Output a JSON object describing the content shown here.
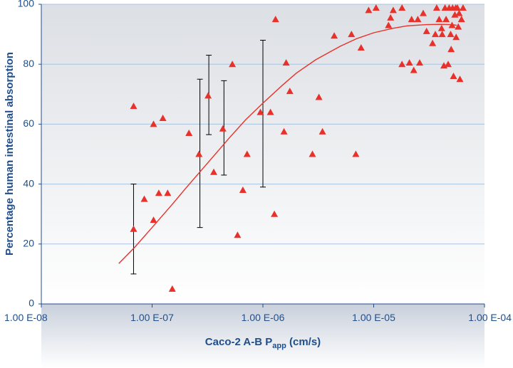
{
  "chart_data": {
    "type": "scatter",
    "title": "",
    "xlabel": "Caco-2 A-B P",
    "xlabel_sub": "app",
    "xlabel_unit": " (cm/s)",
    "ylabel": "Percentage human intestinal absorption",
    "x_scale": "log",
    "xlim": [
      1e-08,
      0.0001
    ],
    "ylim": [
      0,
      100
    ],
    "x_ticks": [
      {
        "value": 1e-08,
        "label": "1.00 E-08"
      },
      {
        "value": 1e-07,
        "label": "1.00 E-07"
      },
      {
        "value": 1e-06,
        "label": "1.00 E-06"
      },
      {
        "value": 1e-05,
        "label": "1.00 E-05"
      },
      {
        "value": 0.0001,
        "label": "1.00 E-04"
      }
    ],
    "y_ticks": [
      {
        "value": 0,
        "label": "0"
      },
      {
        "value": 20,
        "label": "20"
      },
      {
        "value": 40,
        "label": "40"
      },
      {
        "value": 60,
        "label": "60"
      },
      {
        "value": 80,
        "label": "80"
      },
      {
        "value": 100,
        "label": "100"
      }
    ],
    "grid": "horizontal",
    "legend": "none",
    "colors": {
      "points": "#e8312a",
      "fit": "#e8312a",
      "text": "#1f4f8b",
      "error_bars": "#000000",
      "grid": "#a9c3df"
    },
    "points": [
      {
        "x": 6.8e-08,
        "y": 66
      },
      {
        "x": 6.8e-08,
        "y": 25
      },
      {
        "x": 8.5e-08,
        "y": 35
      },
      {
        "x": 1.03e-07,
        "y": 28
      },
      {
        "x": 1.03e-07,
        "y": 60
      },
      {
        "x": 1.15e-07,
        "y": 37
      },
      {
        "x": 1.25e-07,
        "y": 62
      },
      {
        "x": 1.38e-07,
        "y": 37
      },
      {
        "x": 1.52e-07,
        "y": 5
      },
      {
        "x": 2.15e-07,
        "y": 57
      },
      {
        "x": 2.65e-07,
        "y": 50
      },
      {
        "x": 3.2e-07,
        "y": 69.5
      },
      {
        "x": 3.6e-07,
        "y": 44
      },
      {
        "x": 4.35e-07,
        "y": 58.5
      },
      {
        "x": 5.3e-07,
        "y": 80
      },
      {
        "x": 5.9e-07,
        "y": 23
      },
      {
        "x": 6.6e-07,
        "y": 38
      },
      {
        "x": 7.2e-07,
        "y": 50
      },
      {
        "x": 9.5e-07,
        "y": 64
      },
      {
        "x": 1.17e-06,
        "y": 64
      },
      {
        "x": 1.27e-06,
        "y": 30
      },
      {
        "x": 1.3e-06,
        "y": 95
      },
      {
        "x": 1.55e-06,
        "y": 57.5
      },
      {
        "x": 1.62e-06,
        "y": 80.5
      },
      {
        "x": 1.75e-06,
        "y": 71
      },
      {
        "x": 2.8e-06,
        "y": 50
      },
      {
        "x": 3.2e-06,
        "y": 69
      },
      {
        "x": 3.45e-06,
        "y": 57.5
      },
      {
        "x": 4.4e-06,
        "y": 89.5
      },
      {
        "x": 6.3e-06,
        "y": 90
      },
      {
        "x": 6.9e-06,
        "y": 50
      },
      {
        "x": 7.7e-06,
        "y": 85.5
      },
      {
        "x": 9e-06,
        "y": 98
      },
      {
        "x": 1.05e-05,
        "y": 100
      },
      {
        "x": 1.36e-05,
        "y": 93
      },
      {
        "x": 1.42e-05,
        "y": 95.5
      },
      {
        "x": 1.5e-05,
        "y": 98
      },
      {
        "x": 1.8e-05,
        "y": 100
      },
      {
        "x": 1.8e-05,
        "y": 80
      },
      {
        "x": 2.1e-05,
        "y": 80.5
      },
      {
        "x": 2.2e-05,
        "y": 95
      },
      {
        "x": 2.3e-05,
        "y": 78
      },
      {
        "x": 2.5e-05,
        "y": 95
      },
      {
        "x": 2.6e-05,
        "y": 80.5
      },
      {
        "x": 2.8e-05,
        "y": 97
      },
      {
        "x": 3e-05,
        "y": 91
      },
      {
        "x": 3.4e-05,
        "y": 87
      },
      {
        "x": 3.6e-05,
        "y": 90
      },
      {
        "x": 3.7e-05,
        "y": 100
      },
      {
        "x": 3.9e-05,
        "y": 95
      },
      {
        "x": 4.1e-05,
        "y": 92
      },
      {
        "x": 4.15e-05,
        "y": 90
      },
      {
        "x": 4.3e-05,
        "y": 79.5
      },
      {
        "x": 4.4e-05,
        "y": 100
      },
      {
        "x": 4.5e-05,
        "y": 95
      },
      {
        "x": 4.7e-05,
        "y": 80
      },
      {
        "x": 4.8e-05,
        "y": 100
      },
      {
        "x": 4.95e-05,
        "y": 90
      },
      {
        "x": 5e-05,
        "y": 85
      },
      {
        "x": 5.1e-05,
        "y": 93
      },
      {
        "x": 5.15e-05,
        "y": 100
      },
      {
        "x": 5.25e-05,
        "y": 76
      },
      {
        "x": 5.4e-05,
        "y": 96.5
      },
      {
        "x": 5.5e-05,
        "y": 99
      },
      {
        "x": 5.55e-05,
        "y": 89
      },
      {
        "x": 5.7e-05,
        "y": 100
      },
      {
        "x": 5.8e-05,
        "y": 92.5
      },
      {
        "x": 5.9e-05,
        "y": 97
      },
      {
        "x": 6e-05,
        "y": 75
      },
      {
        "x": 6.2e-05,
        "y": 95
      },
      {
        "x": 6.4e-05,
        "y": 100
      }
    ],
    "error_bars": [
      {
        "x": 6.8e-08,
        "low": 10,
        "high": 40
      },
      {
        "x": 2.7e-07,
        "low": 25.5,
        "high": 75
      },
      {
        "x": 3.25e-07,
        "low": 56.5,
        "high": 83
      },
      {
        "x": 4.45e-07,
        "low": 43,
        "high": 74.5
      },
      {
        "x": 1e-06,
        "low": 39,
        "high": 88
      }
    ],
    "fit_curve": [
      {
        "x": 5e-08,
        "y": 13.5
      },
      {
        "x": 7e-08,
        "y": 19
      },
      {
        "x": 1e-07,
        "y": 25.5
      },
      {
        "x": 1.5e-07,
        "y": 33
      },
      {
        "x": 2e-07,
        "y": 38.5
      },
      {
        "x": 3e-07,
        "y": 46
      },
      {
        "x": 5e-07,
        "y": 55.5
      },
      {
        "x": 7e-07,
        "y": 61.5
      },
      {
        "x": 1e-06,
        "y": 67
      },
      {
        "x": 1.5e-06,
        "y": 73
      },
      {
        "x": 2e-06,
        "y": 77
      },
      {
        "x": 3e-06,
        "y": 81.5
      },
      {
        "x": 5e-06,
        "y": 86
      },
      {
        "x": 7e-06,
        "y": 88.5
      },
      {
        "x": 1e-05,
        "y": 90.5
      },
      {
        "x": 1.5e-05,
        "y": 92
      },
      {
        "x": 2e-05,
        "y": 92.8
      },
      {
        "x": 3e-05,
        "y": 93.2
      },
      {
        "x": 4e-05,
        "y": 93.3
      },
      {
        "x": 5e-05,
        "y": 93.2
      },
      {
        "x": 5.6e-05,
        "y": 93
      }
    ]
  }
}
